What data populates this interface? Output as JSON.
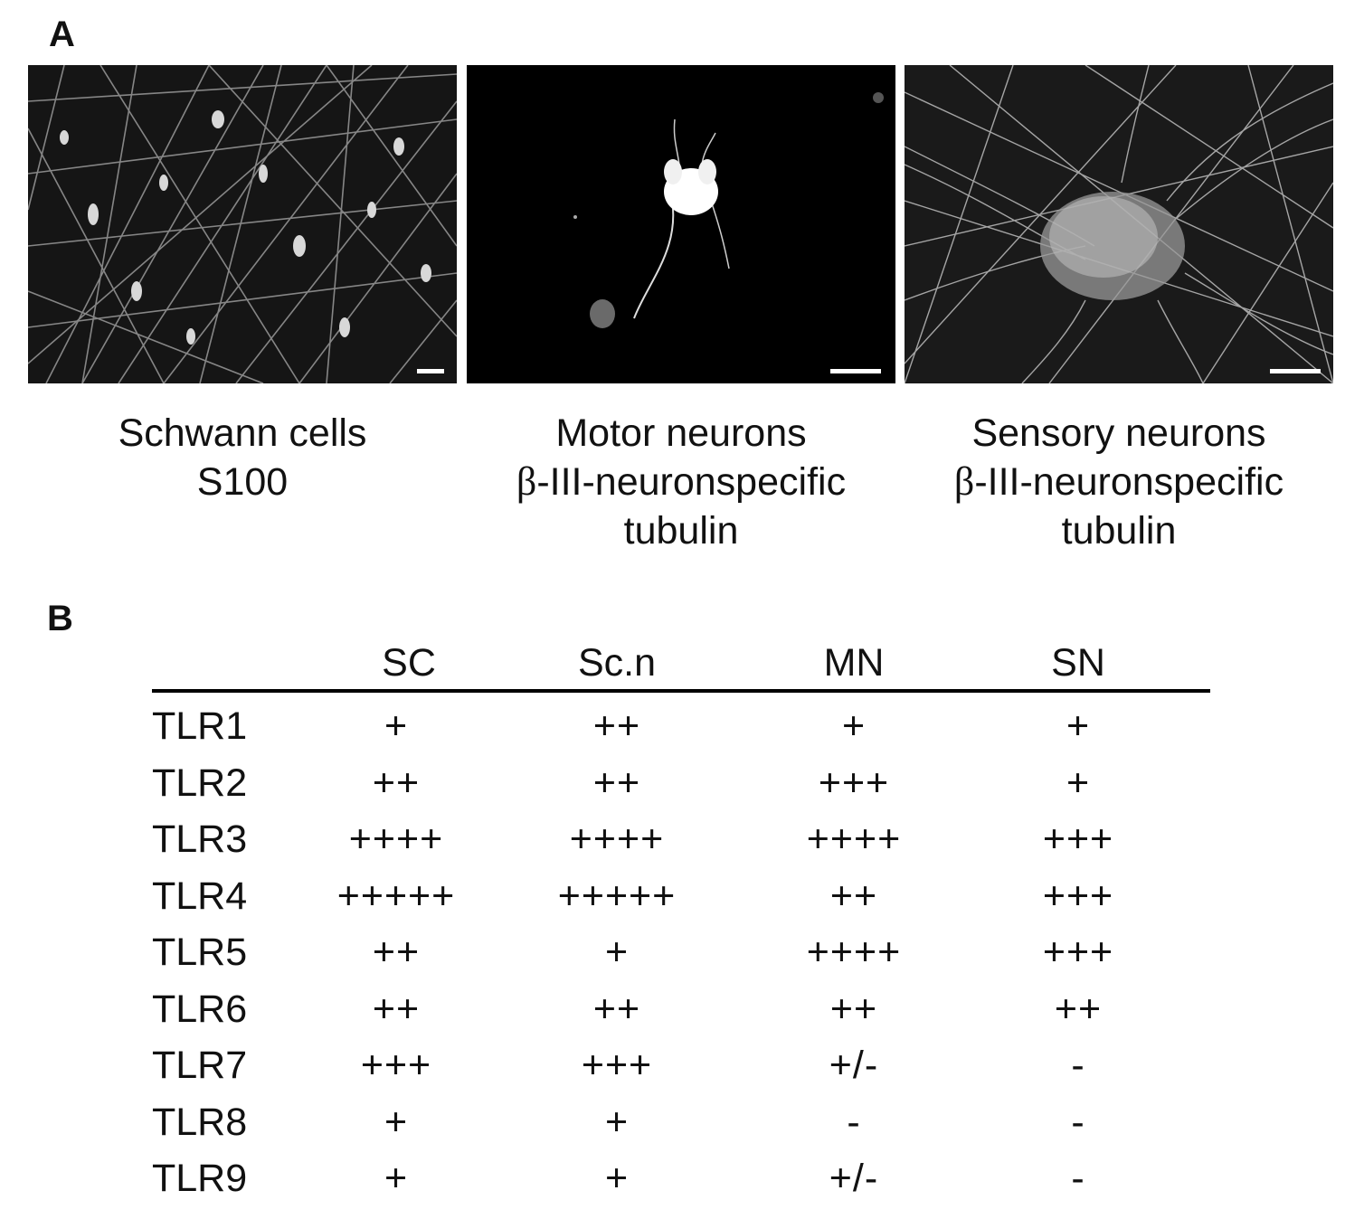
{
  "panel_a": {
    "letter": "A",
    "images": [
      {
        "caption_lines": [
          "Schwann cells",
          "S100"
        ]
      },
      {
        "caption_lines": [
          "Motor neurons",
          "-III-neuronspecific",
          "tubulin"
        ]
      },
      {
        "caption_lines": [
          "Sensory neurons",
          "-III-neuronspecific",
          "tubulin"
        ]
      }
    ],
    "beta_symbol": "β"
  },
  "panel_b": {
    "letter": "B",
    "columns": [
      "SC",
      "Sc.n",
      "MN",
      "SN"
    ],
    "rows": [
      {
        "label": "TLR1",
        "values": [
          "+",
          "++",
          "+",
          "+"
        ]
      },
      {
        "label": "TLR2",
        "values": [
          "++",
          "++",
          "+++",
          "+"
        ]
      },
      {
        "label": "TLR3",
        "values": [
          "++++",
          "++++",
          "++++",
          "+++"
        ]
      },
      {
        "label": "TLR4",
        "values": [
          "+++++",
          "+++++",
          "++",
          "+++"
        ]
      },
      {
        "label": "TLR5",
        "values": [
          "++",
          "+",
          "++++",
          "+++"
        ]
      },
      {
        "label": "TLR6",
        "values": [
          "++",
          "++",
          "++",
          "++"
        ]
      },
      {
        "label": "TLR7",
        "values": [
          "+++",
          "+++",
          "+/-",
          "-"
        ]
      },
      {
        "label": "TLR8",
        "values": [
          "+",
          "+",
          "-",
          "-"
        ]
      },
      {
        "label": "TLR9",
        "values": [
          "+",
          "+",
          "+/-",
          "-"
        ]
      }
    ]
  }
}
